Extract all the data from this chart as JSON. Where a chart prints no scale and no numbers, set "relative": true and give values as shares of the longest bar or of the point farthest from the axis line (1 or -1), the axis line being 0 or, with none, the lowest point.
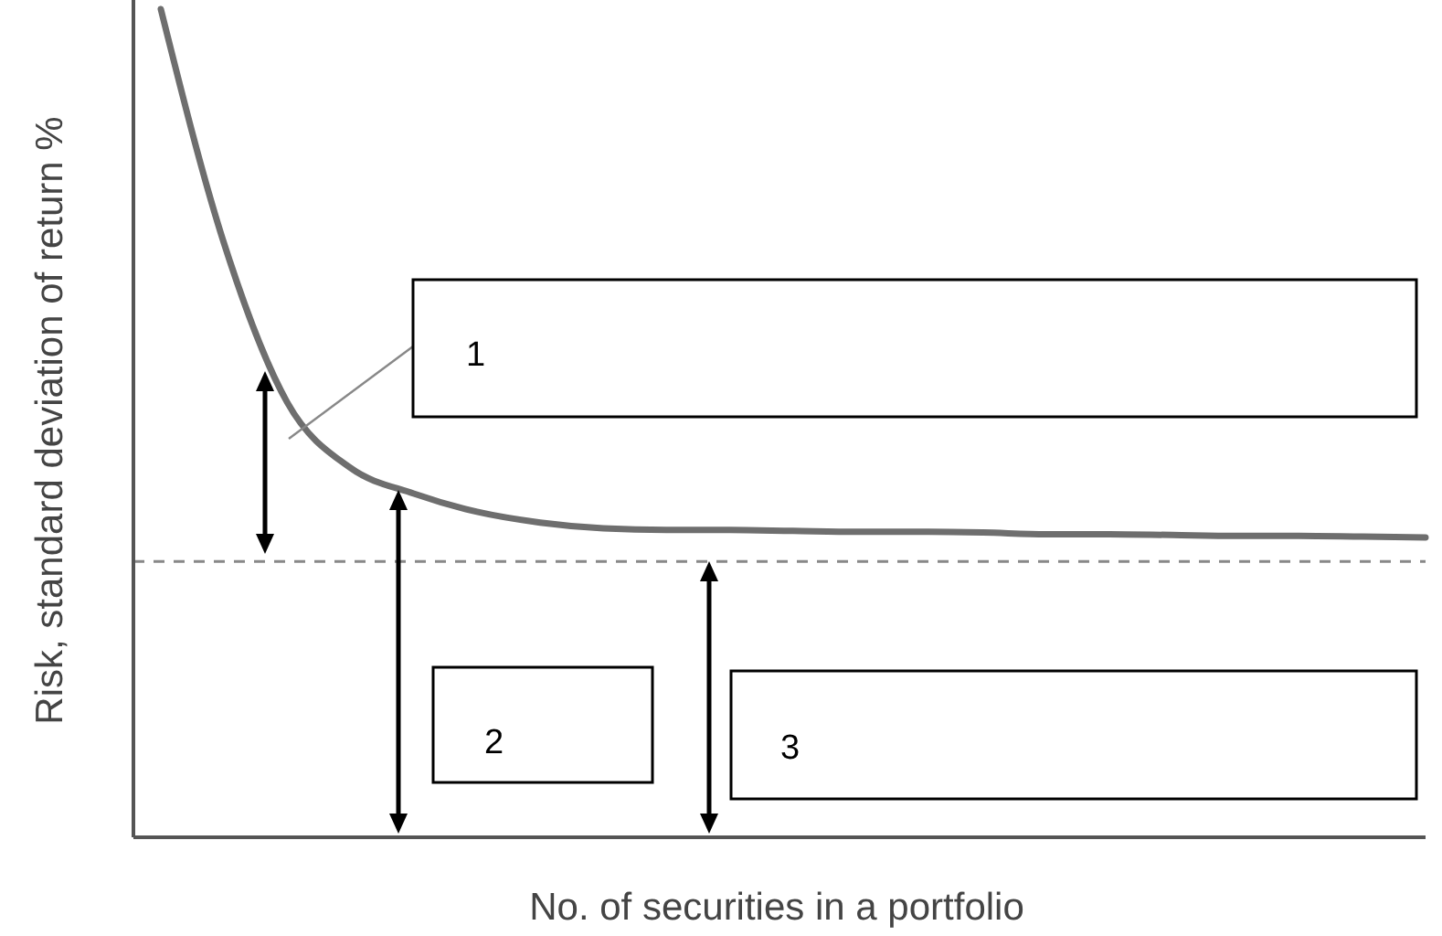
{
  "chart_data": {
    "type": "line",
    "relative": true,
    "xlabel": "No. of securities in a portfolio",
    "ylabel": "Risk, standard deviation of return %",
    "categories": [
      null,
      null,
      null,
      null,
      null,
      null,
      null,
      null,
      null,
      null,
      null,
      null,
      null,
      null,
      null,
      null,
      null,
      null,
      null,
      null,
      null
    ],
    "series": [
      {
        "color": "#6e6e6e",
        "values": [
          1.0,
          0.717,
          0.525,
          0.446,
          0.415,
          0.393,
          0.38,
          0.373,
          0.371,
          0.371,
          0.37,
          0.369,
          0.369,
          0.368,
          0.366,
          0.366,
          0.365,
          0.364,
          0.364,
          0.363,
          0.362
        ]
      }
    ],
    "ref_lines": [
      {
        "axis": "y",
        "value": 0.333,
        "color": "#888888",
        "line_style": "dashed"
      }
    ],
    "annotations": [
      "1",
      "2",
      "3"
    ]
  }
}
